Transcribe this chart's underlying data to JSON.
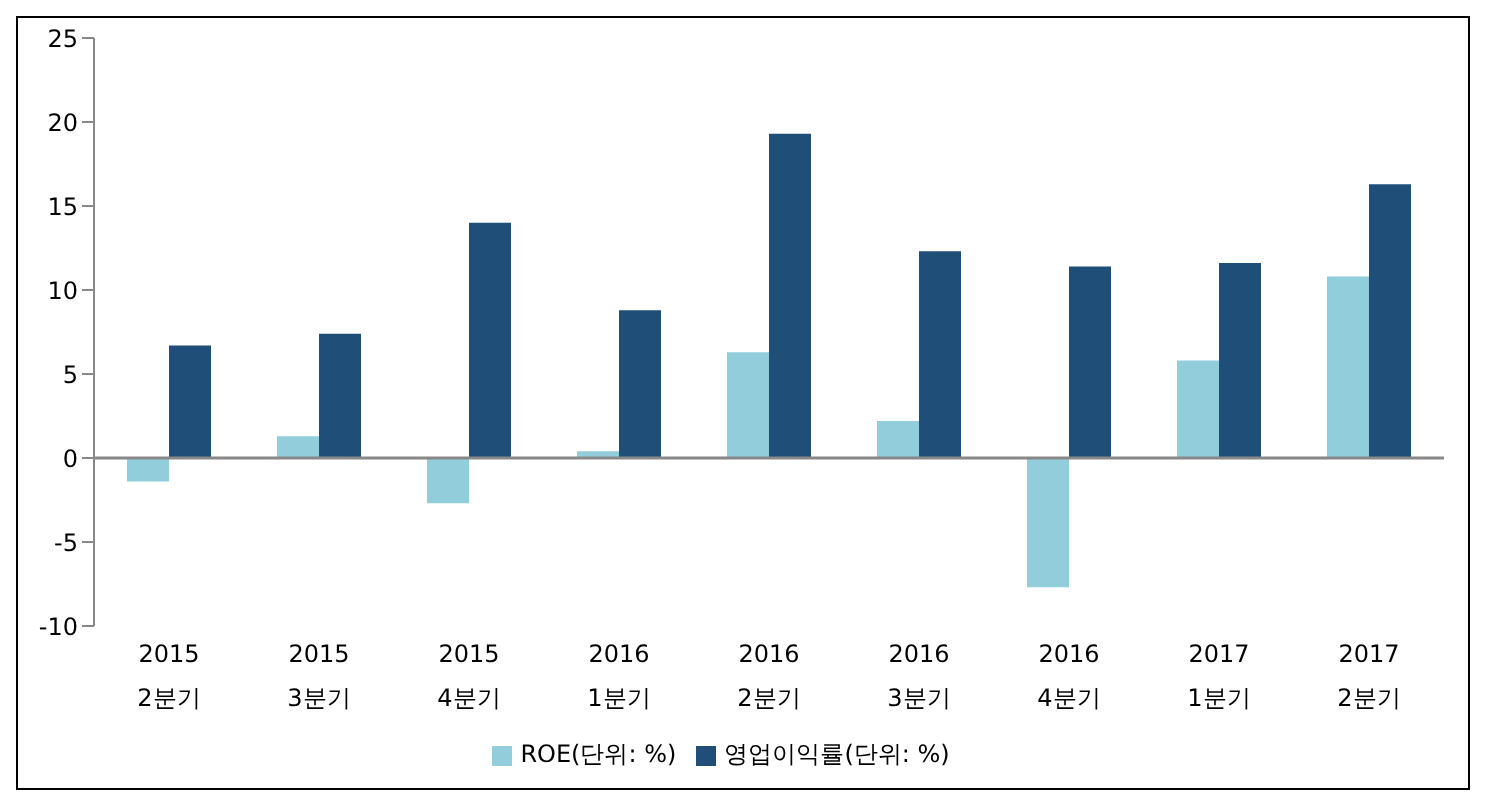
{
  "chart_data": {
    "type": "bar",
    "categories": [
      "2015\n2분기",
      "2015\n3분기",
      "2015\n4분기",
      "2016\n1분기",
      "2016\n2분기",
      "2016\n3분기",
      "2016\n4분기",
      "2017\n1분기",
      "2017\n2분기"
    ],
    "series": [
      {
        "name": "ROE(단위: %)",
        "color": "#92cddc",
        "values": [
          -1.4,
          1.3,
          -2.7,
          0.4,
          6.3,
          2.2,
          -7.7,
          5.8,
          10.8
        ]
      },
      {
        "name": "영업이익률(단위: %)",
        "color": "#1f4e79",
        "values": [
          6.7,
          7.4,
          14.0,
          8.8,
          19.3,
          12.3,
          11.4,
          11.6,
          16.3
        ]
      }
    ],
    "ylim": [
      -10,
      25
    ],
    "yticks": [
      -10,
      -5,
      0,
      5,
      10,
      15,
      20,
      25
    ],
    "legend": "bottom"
  }
}
